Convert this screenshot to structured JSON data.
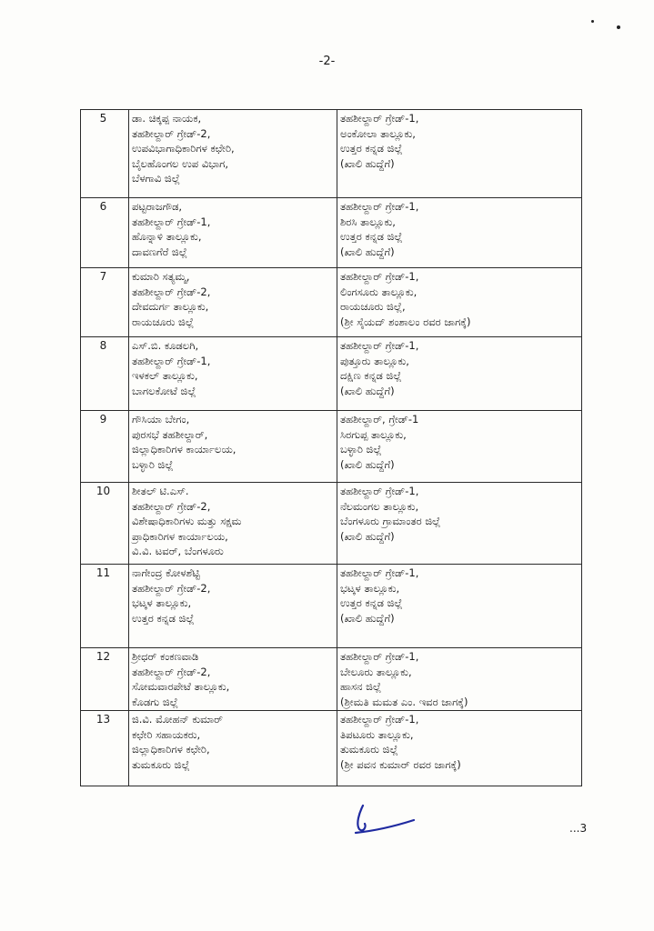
{
  "header": {
    "page_number": "-2-"
  },
  "footer": {
    "continuation": "...3"
  },
  "table": {
    "rows": [
      {
        "no": "5",
        "from": [
          "ಡಾ. ಚಿಕ್ಕಪ್ಪ ನಾಯಕ,",
          "ತಹಶೀಲ್ದಾರ್ ಗ್ರೇಡ್-2,",
          "ಉಪವಿಭಾಗಾಧಿಕಾರಿಗಳ ಕಛೇರಿ,",
          "ಬೈಲಹೊಂಗಲ ಉಪ ವಿಭಾಗ,",
          "ಬೆಳಗಾವಿ ಜಿಲ್ಲೆ"
        ],
        "to": [
          "ತಹಶೀಲ್ದಾರ್ ಗ್ರೇಡ್-1,",
          "ಅಂಕೋಲಾ ತಾಲ್ಲೂಕು,",
          "ಉತ್ತರ ಕನ್ನಡ ಜಿಲ್ಲೆ",
          "(ಖಾಲಿ ಹುದ್ದೆಗೆ)"
        ]
      },
      {
        "no": "6",
        "from": [
          "ಪಟ್ಟರಾಜಗೌಡ,",
          "ತಹಶೀಲ್ದಾರ್ ಗ್ರೇಡ್-1,",
          "ಹೊನ್ನಾಳಿ ತಾಲ್ಲೂಕು,",
          "ದಾವಣಗೆರೆ ಜಿಲ್ಲೆ"
        ],
        "to": [
          "ತಹಶೀಲ್ದಾರ್ ಗ್ರೇಡ್-1,",
          "ಶಿರಸಿ ತಾಲ್ಲೂಕು,",
          "ಉತ್ತರ ಕನ್ನಡ ಜಿಲ್ಲೆ",
          "(ಖಾಲಿ ಹುದ್ದೆಗೆ)"
        ]
      },
      {
        "no": "7",
        "from": [
          "ಕುಮಾರಿ ಸತ್ಯಮ್ಮ,",
          "ತಹಶೀಲ್ದಾರ್ ಗ್ರೇಡ್-2,",
          "ದೇವದುರ್ಗ ತಾಲ್ಲೂಕು,",
          "ರಾಯಚೂರು ಜಿಲ್ಲೆ"
        ],
        "to": [
          "ತಹಶೀಲ್ದಾರ್ ಗ್ರೇಡ್-1,",
          "ಲಿಂಗಸೂರು ತಾಲ್ಲೂಕು,",
          "ರಾಯಚೂರು ಜಿಲ್ಲೆ,",
          "(ಶ್ರೀ ಸೈಯದ್ ಶಂಶಾಲಂ ರವರ ಜಾಗಕ್ಕೆ)"
        ]
      },
      {
        "no": "8",
        "from": [
          "ಎಸ್.ಬಿ. ಕೂಡಲಗಿ,",
          "ತಹಶೀಲ್ದಾರ್ ಗ್ರೇಡ್-1,",
          "ಇಳಕಲ್ ತಾಲ್ಲೂಕು,",
          "ಬಾಗಲಕೋಟೆ ಜಿಲ್ಲೆ"
        ],
        "to": [
          "ತಹಶೀಲ್ದಾರ್ ಗ್ರೇಡ್-1,",
          "ಪುತ್ತೂರು ತಾಲ್ಲೂಕು,",
          "ದಕ್ಷಿಣ ಕನ್ನಡ ಜಿಲ್ಲೆ",
          "(ಖಾಲಿ ಹುದ್ದೆಗೆ)"
        ]
      },
      {
        "no": "9",
        "from": [
          "ಗೌಸಿಯಾ ಬೇಗಂ,",
          "ಪುರಸಭೆ ತಹಶೀಲ್ದಾರ್,",
          "ಜಿಲ್ಲಾಧಿಕಾರಿಗಳ ಕಾರ್ಯಾಲಯ,",
          "ಬಳ್ಳಾರಿ ಜಿಲ್ಲೆ"
        ],
        "to": [
          "ತಹಶೀಲ್ದಾರ್, ಗ್ರೇಡ್-1",
          "ಸಿರಗುಪ್ಪ ತಾಲ್ಲೂಕು,",
          "ಬಳ್ಳಾರಿ ಜಿಲ್ಲೆ",
          "(ಖಾಲಿ ಹುದ್ದೆಗೆ)"
        ]
      },
      {
        "no": "10",
        "from": [
          "ಶೀತಲ್ ಟಿ.ಎಸ್.",
          "ತಹಶೀಲ್ದಾರ್ ಗ್ರೇಡ್-2,",
          "ವಿಶೇಷಾಧಿಕಾರಿಗಳು ಮತ್ತು ಸಕ್ಷಮ",
          "ಪ್ರಾಧಿಕಾರಿಗಳ ಕಾರ್ಯಾಲಯ,",
          "ವಿ.ವಿ. ಟವರ್, ಬೆಂಗಳೂರು"
        ],
        "to": [
          "ತಹಶೀಲ್ದಾರ್ ಗ್ರೇಡ್-1,",
          "ನೆಲಮಂಗಲ ತಾಲ್ಲೂಕು,",
          "ಬೆಂಗಳೂರು ಗ್ರಾಮಾಂತರ ಜಿಲ್ಲೆ",
          "(ಖಾಲಿ ಹುದ್ದೆಗೆ)"
        ]
      },
      {
        "no": "11",
        "from": [
          "ನಾಗೇಂದ್ರ ಕೋಳಶೆಟ್ಟಿ",
          "ತಹಶೀಲ್ದಾರ್ ಗ್ರೇಡ್-2,",
          "ಭಟ್ಕಳ ತಾಲ್ಲೂಕು,",
          "ಉತ್ತರ ಕನ್ನಡ ಜಿಲ್ಲೆ"
        ],
        "to": [
          "ತಹಶೀಲ್ದಾರ್ ಗ್ರೇಡ್-1,",
          "ಭಟ್ಕಳ ತಾಲ್ಲೂಕು,",
          "ಉತ್ತರ ಕನ್ನಡ ಜಿಲ್ಲೆ",
          "(ಖಾಲಿ ಹುದ್ದೆಗೆ)"
        ]
      },
      {
        "no": "12",
        "from": [
          "ಶ್ರೀಧರ್ ಕಂಕಣವಾಡಿ",
          "ತಹಶೀಲ್ದಾರ್ ಗ್ರೇಡ್-2,",
          "ಸೋಮವಾರಪೇಟೆ ತಾಲ್ಲೂಕು,",
          "ಕೊಡಗು ಜಿಲ್ಲೆ"
        ],
        "to": [
          "ತಹಶೀಲ್ದಾರ್ ಗ್ರೇಡ್-1,",
          "ಬೇಲೂರು ತಾಲ್ಲೂಕು,",
          "ಹಾಸನ ಜಿಲ್ಲೆ",
          "(ಶ್ರೀಮತಿ ಮಮತ ಎಂ. ಇವರ ಜಾಗಕ್ಕೆ)"
        ]
      },
      {
        "no": "13",
        "from": [
          "ಜಿ.ವಿ. ಮೋಹನ್ ಕುಮಾರ್",
          "ಕಛೇರಿ ಸಹಾಯಕರು,",
          "ಜಿಲ್ಲಾಧಿಕಾರಿಗಳ ಕಛೇರಿ,",
          "ತುಮಕೂರು ಜಿಲ್ಲೆ"
        ],
        "to": [
          "ತಹಶೀಲ್ದಾರ್ ಗ್ರೇಡ್-1,",
          "ತಿಪಟೂರು ತಾಲ್ಲೂಕು,",
          "ತುಮಕೂರು ಜಿಲ್ಲೆ",
          "(ಶ್ರೀ ಪವನ ಕುಮಾರ್ ರವರ ಜಾಗಕ್ಕೆ)"
        ]
      }
    ]
  }
}
